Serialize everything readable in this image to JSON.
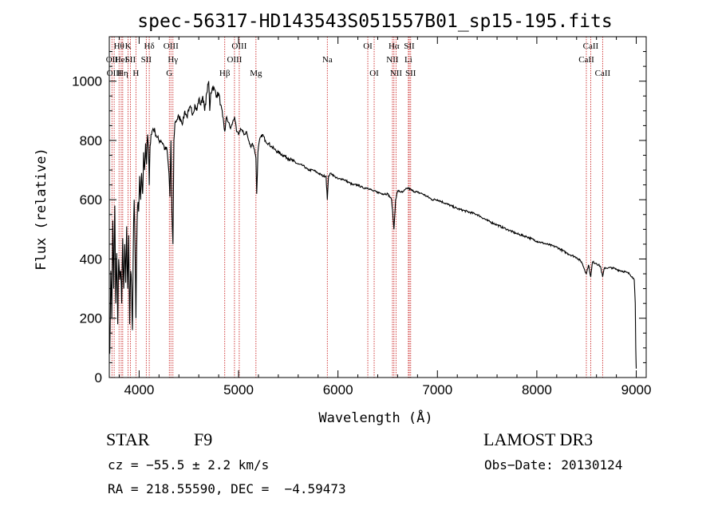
{
  "chart_data": {
    "type": "line",
    "title": "spec-56317-HD143543S051557B01_sp15-195.fits",
    "xlabel": "Wavelength (Å)",
    "ylabel": "Flux (relative)",
    "xlim": [
      3700,
      9100
    ],
    "ylim": [
      0,
      1150
    ],
    "xticks": [
      4000,
      5000,
      6000,
      7000,
      8000,
      9000
    ],
    "yticks": [
      0,
      200,
      400,
      600,
      800,
      1000
    ],
    "grid": false,
    "colors": {
      "line": "#000000",
      "marker": "#cc2a2a"
    },
    "series": [
      {
        "x": [
          3705,
          3715,
          3725,
          3735,
          3745,
          3755,
          3765,
          3775,
          3785,
          3795,
          3805,
          3815,
          3825,
          3835,
          3845,
          3855,
          3865,
          3875,
          3885,
          3895,
          3905,
          3915,
          3925,
          3933,
          3940,
          3950,
          3960,
          3968,
          3975,
          3985,
          3995,
          4005,
          4015,
          4025,
          4035,
          4045,
          4055,
          4065,
          4075,
          4085,
          4095,
          4102,
          4110,
          4120,
          4140,
          4160,
          4180,
          4200,
          4220,
          4240,
          4260,
          4280,
          4300,
          4310,
          4320,
          4330,
          4340,
          4350,
          4360,
          4380,
          4400,
          4420,
          4440,
          4460,
          4480,
          4500,
          4520,
          4540,
          4560,
          4580,
          4600,
          4620,
          4640,
          4660,
          4680,
          4700,
          4710,
          4720,
          4740,
          4760,
          4780,
          4800,
          4820,
          4840,
          4861,
          4880,
          4900,
          4920,
          4940,
          4960,
          4980,
          5000,
          5020,
          5040,
          5060,
          5080,
          5100,
          5120,
          5140,
          5160,
          5175,
          5183,
          5195,
          5210,
          5240,
          5270,
          5300,
          5330,
          5360,
          5400,
          5450,
          5500,
          5550,
          5600,
          5650,
          5700,
          5750,
          5800,
          5850,
          5880,
          5893,
          5905,
          5930,
          5960,
          6000,
          6050,
          6100,
          6150,
          6200,
          6250,
          6300,
          6350,
          6400,
          6450,
          6500,
          6540,
          6563,
          6580,
          6600,
          6650,
          6700,
          6750,
          6800,
          6850,
          6900,
          6950,
          7000,
          7100,
          7200,
          7300,
          7400,
          7500,
          7600,
          7700,
          7800,
          7900,
          8000,
          8100,
          8200,
          8300,
          8400,
          8450,
          8498,
          8520,
          8542,
          8560,
          8600,
          8640,
          8662,
          8680,
          8720,
          8760,
          8800,
          8850,
          8900,
          8930,
          8960,
          8980,
          8990,
          8995,
          9000
        ],
        "y": [
          80,
          360,
          200,
          530,
          300,
          580,
          250,
          420,
          180,
          400,
          330,
          360,
          250,
          470,
          300,
          450,
          320,
          510,
          300,
          480,
          180,
          360,
          300,
          160,
          400,
          600,
          420,
          200,
          430,
          580,
          560,
          680,
          600,
          690,
          620,
          760,
          700,
          790,
          720,
          820,
          760,
          650,
          780,
          820,
          840,
          830,
          810,
          800,
          800,
          790,
          770,
          770,
          690,
          610,
          800,
          560,
          450,
          800,
          860,
          870,
          880,
          870,
          860,
          900,
          880,
          900,
          910,
          890,
          920,
          900,
          940,
          920,
          950,
          900,
          960,
          1000,
          900,
          960,
          980,
          970,
          950,
          960,
          920,
          880,
          830,
          880,
          860,
          840,
          860,
          880,
          830,
          820,
          840,
          830,
          820,
          830,
          800,
          780,
          790,
          770,
          740,
          620,
          760,
          800,
          820,
          800,
          790,
          780,
          770,
          760,
          750,
          740,
          730,
          720,
          715,
          700,
          700,
          690,
          680,
          680,
          600,
          680,
          690,
          680,
          670,
          670,
          660,
          650,
          650,
          640,
          640,
          630,
          625,
          620,
          620,
          600,
          500,
          600,
          630,
          625,
          640,
          630,
          625,
          620,
          610,
          600,
          600,
          585,
          570,
          560,
          550,
          530,
          515,
          500,
          485,
          475,
          460,
          450,
          440,
          420,
          405,
          390,
          350,
          380,
          340,
          390,
          385,
          375,
          340,
          370,
          370,
          370,
          365,
          360,
          355,
          350,
          340,
          330,
          250,
          100,
          30
        ]
      }
    ],
    "lines": [
      {
        "label": "Hθ",
        "x": 3798,
        "row": 1
      },
      {
        "label": "OII",
        "x": 3727,
        "row": 2
      },
      {
        "label": "OIII",
        "x": 3749,
        "row": 3
      },
      {
        "label": "HeI",
        "x": 3820,
        "row": 2
      },
      {
        "label": "Hη",
        "x": 3835,
        "row": 3
      },
      {
        "label": "K",
        "x": 3889,
        "row": 1
      },
      {
        "label": "SII",
        "x": 3912,
        "row": 2
      },
      {
        "label": "H",
        "x": 3968,
        "row": 3
      },
      {
        "label": "Hδ",
        "x": 4102,
        "row": 1
      },
      {
        "label": "SII",
        "x": 4072,
        "row": 2
      },
      {
        "label": "OIII",
        "x": 4320,
        "row": 1
      },
      {
        "label": "Hγ",
        "x": 4340,
        "row": 2
      },
      {
        "label": "G",
        "x": 4304,
        "row": 3
      },
      {
        "label": "Hβ",
        "x": 4861,
        "row": 3
      },
      {
        "label": "OIII",
        "x": 5007,
        "row": 1
      },
      {
        "label": "OIII",
        "x": 4959,
        "row": 2
      },
      {
        "label": "Mg",
        "x": 5175,
        "row": 3
      },
      {
        "label": "Na",
        "x": 5893,
        "row": 2
      },
      {
        "label": "OI",
        "x": 6300,
        "row": 1
      },
      {
        "label": "OI",
        "x": 6364,
        "row": 3
      },
      {
        "label": "Hα",
        "x": 6563,
        "row": 1
      },
      {
        "label": "NII",
        "x": 6548,
        "row": 2
      },
      {
        "label": "NII",
        "x": 6584,
        "row": 3
      },
      {
        "label": "SII",
        "x": 6717,
        "row": 1
      },
      {
        "label": "Li",
        "x": 6708,
        "row": 2
      },
      {
        "label": "SII",
        "x": 6731,
        "row": 3
      },
      {
        "label": "CaII",
        "x": 8542,
        "row": 1
      },
      {
        "label": "CaII",
        "x": 8498,
        "row": 2
      },
      {
        "label": "CaII",
        "x": 8662,
        "row": 3
      }
    ]
  },
  "info": {
    "object_class": "STAR",
    "subclass": "F9",
    "survey": "LAMOST DR3",
    "cz": "cz = −55.5 ± 2.2 km/s",
    "obs_date": "Obs−Date: 20130124",
    "coords": "RA = 218.55590, DEC =  −4.59473"
  }
}
